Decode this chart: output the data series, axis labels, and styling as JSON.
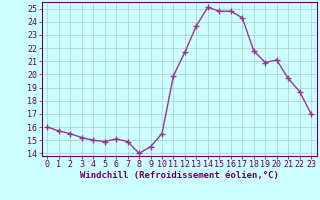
{
  "x": [
    0,
    1,
    2,
    3,
    4,
    5,
    6,
    7,
    8,
    9,
    10,
    11,
    12,
    13,
    14,
    15,
    16,
    17,
    18,
    19,
    20,
    21,
    22,
    23
  ],
  "y": [
    16.0,
    15.7,
    15.5,
    15.2,
    15.0,
    14.9,
    15.1,
    14.9,
    14.0,
    14.5,
    15.5,
    19.9,
    21.7,
    23.7,
    25.1,
    24.8,
    24.8,
    24.3,
    21.8,
    20.9,
    21.1,
    19.7,
    18.7,
    17.0
  ],
  "line_color": "#993399",
  "marker": "+",
  "marker_size": 4,
  "bg_color": "#ccffff",
  "grid_color": "#aacccc",
  "ylim": [
    13.8,
    25.5
  ],
  "xlim": [
    -0.5,
    23.5
  ],
  "xlabel": "Windchill (Refroidissement éolien,°C)",
  "yticks": [
    14,
    15,
    16,
    17,
    18,
    19,
    20,
    21,
    22,
    23,
    24,
    25
  ],
  "xticks": [
    0,
    1,
    2,
    3,
    4,
    5,
    6,
    7,
    8,
    9,
    10,
    11,
    12,
    13,
    14,
    15,
    16,
    17,
    18,
    19,
    20,
    21,
    22,
    23
  ],
  "xlabel_fontsize": 6.5,
  "tick_fontsize": 6.0,
  "line_width": 1.0,
  "marker_edge_width": 1.0
}
